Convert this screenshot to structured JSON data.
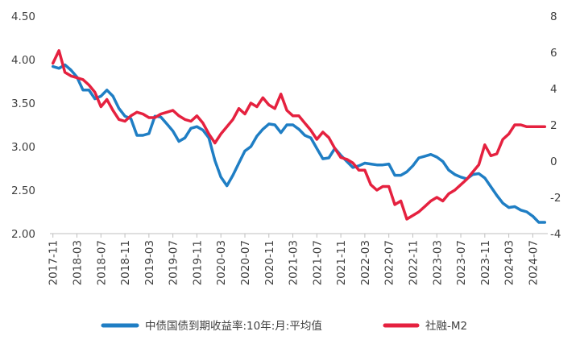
{
  "chart_data": {
    "type": "line",
    "title": "",
    "xlabel": "",
    "ylabel": "",
    "legend_position": "bottom",
    "grid": false,
    "x_categories": [
      "2017-11",
      "2017-12",
      "2018-01",
      "2018-02",
      "2018-03",
      "2018-04",
      "2018-05",
      "2018-06",
      "2018-07",
      "2018-08",
      "2018-09",
      "2018-10",
      "2018-11",
      "2018-12",
      "2019-01",
      "2019-02",
      "2019-03",
      "2019-04",
      "2019-05",
      "2019-06",
      "2019-07",
      "2019-08",
      "2019-09",
      "2019-10",
      "2019-11",
      "2019-12",
      "2020-01",
      "2020-02",
      "2020-03",
      "2020-04",
      "2020-05",
      "2020-06",
      "2020-07",
      "2020-08",
      "2020-09",
      "2020-10",
      "2020-11",
      "2020-12",
      "2021-01",
      "2021-02",
      "2021-03",
      "2021-04",
      "2021-05",
      "2021-06",
      "2021-07",
      "2021-08",
      "2021-09",
      "2021-10",
      "2021-11",
      "2021-12",
      "2022-01",
      "2022-02",
      "2022-03",
      "2022-04",
      "2022-05",
      "2022-06",
      "2022-07",
      "2022-08",
      "2022-09",
      "2022-10",
      "2022-11",
      "2022-12",
      "2023-01",
      "2023-02",
      "2023-03",
      "2023-04",
      "2023-05",
      "2023-06",
      "2023-07",
      "2023-08",
      "2023-09",
      "2023-10",
      "2023-11",
      "2023-12",
      "2024-01",
      "2024-02",
      "2024-03",
      "2024-04",
      "2024-05",
      "2024-06",
      "2024-07",
      "2024-08",
      "2024-09"
    ],
    "x_tick_labels": [
      "2017-11",
      "2018-03",
      "2018-07",
      "2018-11",
      "2019-03",
      "2019-07",
      "2019-11",
      "2020-03",
      "2020-07",
      "2020-11",
      "2021-03",
      "2021-07",
      "2021-11",
      "2022-03",
      "2022-07",
      "2022-11",
      "2023-03",
      "2023-07",
      "2023-11",
      "2024-03",
      "2024-07"
    ],
    "y_left": {
      "ylim": [
        2.0,
        4.5
      ],
      "ticks": [
        "2.00",
        "2.50",
        "3.00",
        "3.50",
        "4.00",
        "4.50"
      ]
    },
    "y_right": {
      "ylim": [
        -4,
        8
      ],
      "ticks": [
        "-4",
        "-2",
        "0",
        "2",
        "4",
        "6",
        "8"
      ]
    },
    "series": [
      {
        "name": "中债国债到期收益率:10年:月:平均值",
        "axis": "left",
        "color": "#1f7ec4",
        "values": [
          3.92,
          3.9,
          3.94,
          3.88,
          3.8,
          3.65,
          3.65,
          3.55,
          3.58,
          3.65,
          3.58,
          3.44,
          3.35,
          3.32,
          3.13,
          3.13,
          3.15,
          3.35,
          3.34,
          3.26,
          3.18,
          3.06,
          3.1,
          3.21,
          3.23,
          3.19,
          3.1,
          2.84,
          2.65,
          2.55,
          2.67,
          2.81,
          2.95,
          3.0,
          3.12,
          3.2,
          3.26,
          3.25,
          3.16,
          3.25,
          3.25,
          3.2,
          3.13,
          3.1,
          2.98,
          2.86,
          2.87,
          2.98,
          2.9,
          2.83,
          2.76,
          2.78,
          2.81,
          2.8,
          2.79,
          2.79,
          2.8,
          2.67,
          2.67,
          2.71,
          2.78,
          2.87,
          2.89,
          2.91,
          2.88,
          2.83,
          2.73,
          2.68,
          2.65,
          2.63,
          2.68,
          2.69,
          2.64,
          2.54,
          2.44,
          2.35,
          2.3,
          2.31,
          2.27,
          2.25,
          2.2,
          2.13,
          2.13
        ]
      },
      {
        "name": "社融-M2",
        "axis": "right",
        "color": "#e5213f",
        "values": [
          5.4,
          6.1,
          4.9,
          4.7,
          4.6,
          4.5,
          4.2,
          3.8,
          3.0,
          3.4,
          2.8,
          2.3,
          2.2,
          2.5,
          2.7,
          2.6,
          2.4,
          2.4,
          2.6,
          2.7,
          2.8,
          2.5,
          2.3,
          2.2,
          2.5,
          2.1,
          1.5,
          1.0,
          1.5,
          1.9,
          2.3,
          2.9,
          2.6,
          3.2,
          3.0,
          3.5,
          3.1,
          2.9,
          3.7,
          2.8,
          2.5,
          2.5,
          2.1,
          1.7,
          1.2,
          1.6,
          1.3,
          0.7,
          0.2,
          0.1,
          -0.1,
          -0.5,
          -0.5,
          -1.3,
          -1.6,
          -1.4,
          -1.4,
          -2.4,
          -2.2,
          -3.2,
          -3.0,
          -2.8,
          -2.5,
          -2.2,
          -2.0,
          -2.2,
          -1.8,
          -1.6,
          -1.3,
          -1.0,
          -0.6,
          -0.2,
          0.9,
          0.3,
          0.4,
          1.2,
          1.5,
          2.0,
          2.0,
          1.9,
          1.9,
          1.9,
          1.9
        ]
      }
    ]
  }
}
